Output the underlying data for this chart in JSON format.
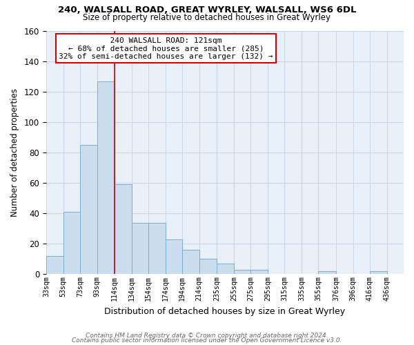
{
  "title1": "240, WALSALL ROAD, GREAT WYRLEY, WALSALL, WS6 6DL",
  "title2": "Size of property relative to detached houses in Great Wyrley",
  "xlabel": "Distribution of detached houses by size in Great Wyrley",
  "ylabel": "Number of detached properties",
  "footnote1": "Contains HM Land Registry data © Crown copyright and database right 2024.",
  "footnote2": "Contains public sector information licensed under the Open Government Licence v3.0.",
  "annotation_line1": "240 WALSALL ROAD: 121sqm",
  "annotation_line2": "← 68% of detached houses are smaller (285)",
  "annotation_line3": "32% of semi-detached houses are larger (132) →",
  "subject_value": 114,
  "bins": [
    33,
    53,
    73,
    93,
    114,
    134,
    154,
    174,
    194,
    214,
    235,
    255,
    275,
    295,
    315,
    335,
    355,
    376,
    396,
    416,
    436
  ],
  "counts": [
    12,
    41,
    85,
    127,
    59,
    34,
    34,
    23,
    16,
    10,
    7,
    3,
    3,
    0,
    0,
    0,
    2,
    0,
    0,
    2,
    0
  ],
  "bar_color": "#ccddf0",
  "bar_edge_color": "#7aadcf",
  "highlight_color": "#cc0000",
  "box_color": "#cc0000",
  "ylim": [
    0,
    160
  ],
  "yticks": [
    0,
    20,
    40,
    60,
    80,
    100,
    120,
    140,
    160
  ],
  "background_color": "#eaf0f8",
  "grid_color": "#c8d8e8"
}
